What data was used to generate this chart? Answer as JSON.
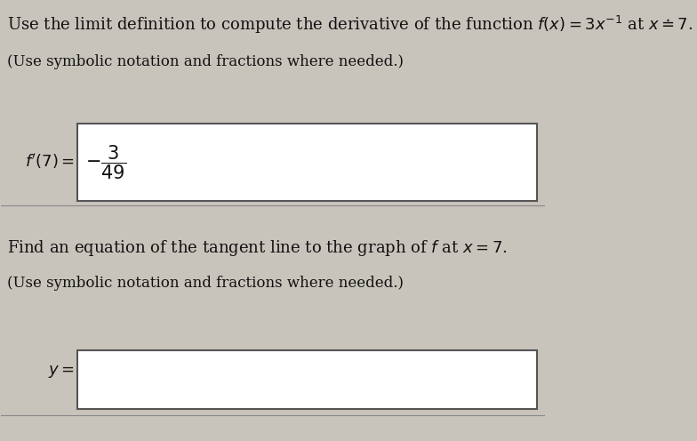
{
  "background_color": "#c8c4bc",
  "title_line": "Use the limit definition to compute the derivative of the function $f(x) = 3x^{-1}$ at $x \\doteq 7$.",
  "subtitle_line": "(Use symbolic notation and fractions where needed.)",
  "fp_label": "$f'(7) =$",
  "fp_answer": "$-\\dfrac{3}{49}$",
  "second_title": "Find an equation of the tangent line to the graph of $f$ at $x = 7$.",
  "second_subtitle": "(Use symbolic notation and fractions where needed.)",
  "y_label": "$y =$",
  "box_color": "#ffffff",
  "box_edge_color": "#555555",
  "text_color": "#111111",
  "font_size_main": 13,
  "font_size_sub": 12
}
